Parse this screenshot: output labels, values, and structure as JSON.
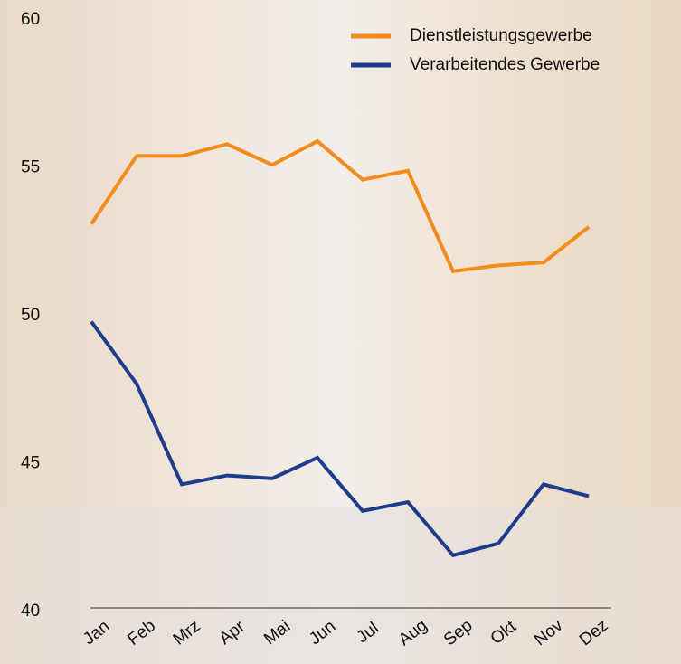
{
  "chart_data": {
    "type": "line",
    "categories": [
      "Jan",
      "Feb",
      "Mrz",
      "Apr",
      "Mai",
      "Jun",
      "Jul",
      "Aug",
      "Sep",
      "Okt",
      "Nov",
      "Dez"
    ],
    "series": [
      {
        "name": "Dienstleistungsgewerbe",
        "color": "#f28c1c",
        "values": [
          53.1,
          55.4,
          55.4,
          55.8,
          55.1,
          55.9,
          54.6,
          54.9,
          51.5,
          51.7,
          51.8,
          53.0
        ]
      },
      {
        "name": "Verarbeitendes Gewerbe",
        "color": "#1e3c8c",
        "values": [
          49.8,
          47.7,
          44.3,
          44.6,
          44.5,
          45.2,
          43.4,
          43.7,
          41.9,
          42.3,
          44.3,
          43.9
        ]
      }
    ],
    "ylim": [
      40,
      60
    ],
    "yticks": [
      40,
      45,
      50,
      55,
      60
    ],
    "legend": "upper right"
  }
}
